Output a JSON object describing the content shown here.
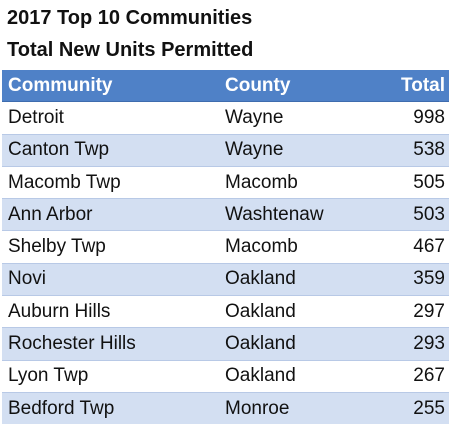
{
  "title_line_1": "2017 Top 10 Communities",
  "title_line_2": "Total New Units Permitted",
  "colors": {
    "header_bg": "#4f81c7",
    "header_text": "#ffffff",
    "band_row": "#d3dff2",
    "plain_row": "#ffffff"
  },
  "table": {
    "headers": {
      "community": "Community",
      "county": "County",
      "total": "Total"
    },
    "rows": [
      {
        "community": "Detroit",
        "county": "Wayne",
        "total": "998"
      },
      {
        "community": "Canton Twp",
        "county": "Wayne",
        "total": "538"
      },
      {
        "community": "Macomb Twp",
        "county": "Macomb",
        "total": "505"
      },
      {
        "community": "Ann Arbor",
        "county": "Washtenaw",
        "total": "503"
      },
      {
        "community": "Shelby Twp",
        "county": "Macomb",
        "total": "467"
      },
      {
        "community": "Novi",
        "county": "Oakland",
        "total": "359"
      },
      {
        "community": "Auburn Hills",
        "county": "Oakland",
        "total": "297"
      },
      {
        "community": "Rochester Hills",
        "county": "Oakland",
        "total": "293"
      },
      {
        "community": "Lyon Twp",
        "county": "Oakland",
        "total": "267"
      },
      {
        "community": "Bedford Twp",
        "county": "Monroe",
        "total": "255"
      }
    ]
  }
}
